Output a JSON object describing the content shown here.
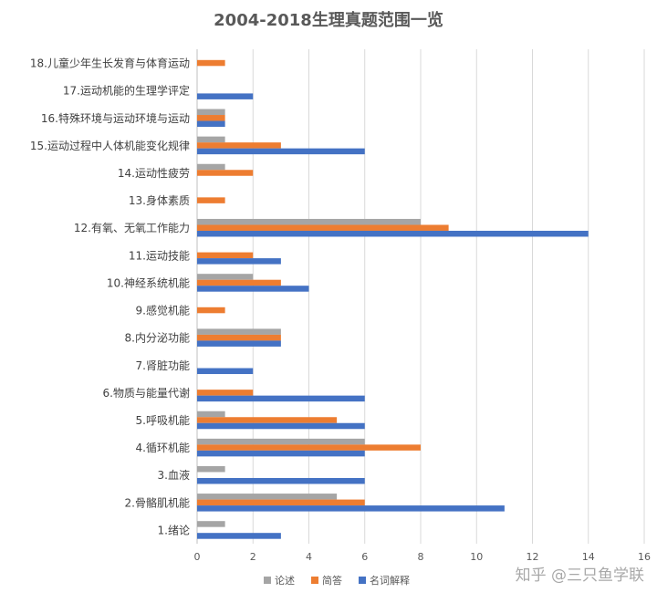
{
  "watermark": "知乎 @三只鱼学联",
  "chart_data": {
    "type": "bar",
    "orientation": "horizontal",
    "title": "2004-2018生理真题范围一览",
    "xlabel": "",
    "ylabel": "",
    "xlim": [
      0,
      16
    ],
    "x_ticks": [
      0,
      2,
      4,
      6,
      8,
      10,
      12,
      14,
      16
    ],
    "grid": "vertical",
    "legend_position": "bottom",
    "categories": [
      "18.儿童少年生长发育与体育运动",
      "17.运动机能的生理学评定",
      "16.特殊环境与运动环境与运动",
      "15.运动过程中人体机能变化规律",
      "14.运动性疲劳",
      "13.身体素质",
      "12.有氧、无氧工作能力",
      "11.运动技能",
      "10.神经系统机能",
      "9.感觉机能",
      "8.内分泌功能",
      "7.肾脏功能",
      "6.物质与能量代谢",
      "5.呼吸机能",
      "4.循环机能",
      "3.血液",
      "2.骨骼肌机能",
      "1.绪论"
    ],
    "series": [
      {
        "name": "论述",
        "color": "#a5a5a5",
        "values": [
          0,
          0,
          1,
          1,
          1,
          0,
          8,
          0,
          2,
          0,
          3,
          0,
          0,
          1,
          6,
          1,
          5,
          1
        ]
      },
      {
        "name": "简答",
        "color": "#ed7d31",
        "values": [
          1,
          0,
          1,
          3,
          2,
          1,
          9,
          2,
          3,
          1,
          3,
          0,
          2,
          5,
          8,
          0,
          6,
          0
        ]
      },
      {
        "name": "名词解释",
        "color": "#4472c4",
        "values": [
          0,
          2,
          1,
          6,
          0,
          0,
          14,
          3,
          4,
          0,
          3,
          2,
          6,
          6,
          6,
          6,
          11,
          3
        ]
      }
    ]
  }
}
